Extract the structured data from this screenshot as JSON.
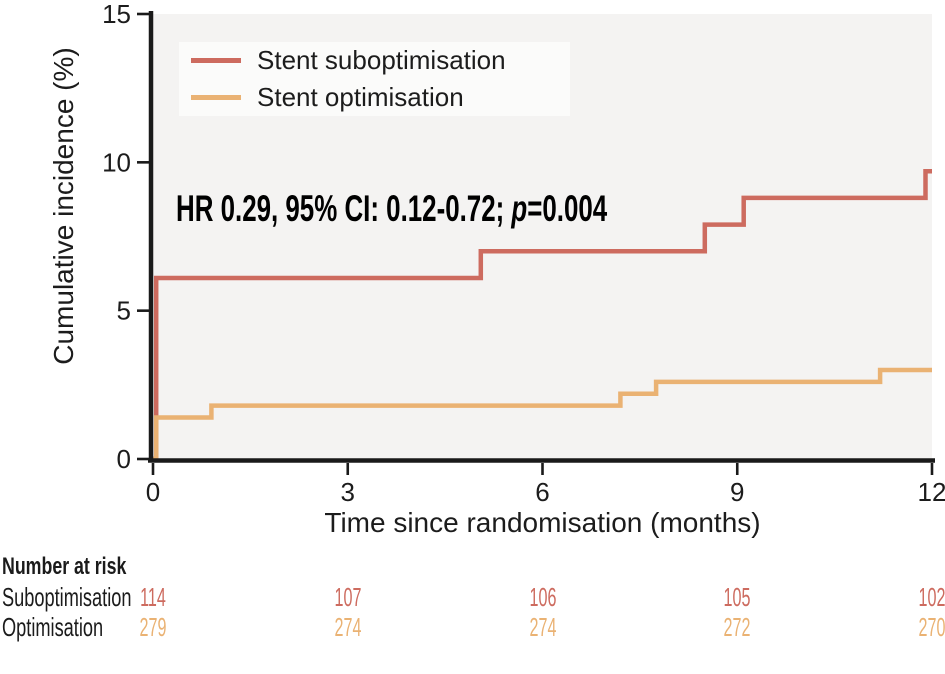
{
  "colors": {
    "suboptimisation": "#cd6b5f",
    "optimisation": "#eab273",
    "plot_bg": "#f4f3f2",
    "legend_bg": "#fbfbfa",
    "axis": "#1a1a1a",
    "text": "#1c1c1c"
  },
  "annotation": {
    "prefix": "HR 0.29, 95% CI: 0.12-0.72; ",
    "p": "p",
    "suffix": "=0.004"
  },
  "chart_data": {
    "type": "line",
    "subtype": "step",
    "title": "",
    "xlabel": "Time since randomisation (months)",
    "ylabel": "Cumulative incidence (%)",
    "xlim": [
      0,
      12
    ],
    "ylim": [
      0,
      15
    ],
    "xticks": [
      0,
      3,
      6,
      9,
      12
    ],
    "yticks": [
      0,
      5,
      10,
      15
    ],
    "grid": false,
    "legend_position": "top-left",
    "annotation_text": "HR 0.29, 95% CI: 0.12-0.72; p=0.004",
    "series": [
      {
        "name": "Stent suboptimisation",
        "color": "#cd6b5f",
        "steps": [
          [
            0,
            0
          ],
          [
            0.05,
            6.1
          ],
          [
            5.05,
            7.0
          ],
          [
            8.5,
            7.9
          ],
          [
            9.1,
            8.8
          ],
          [
            11.9,
            9.7
          ]
        ],
        "end_x": 12
      },
      {
        "name": "Stent optimisation",
        "color": "#eab273",
        "steps": [
          [
            0,
            0
          ],
          [
            0.05,
            1.4
          ],
          [
            0.9,
            1.8
          ],
          [
            7.2,
            2.2
          ],
          [
            7.75,
            2.6
          ],
          [
            11.2,
            3.0
          ]
        ],
        "end_x": 12
      }
    ],
    "number_at_risk": {
      "title": "Number at risk",
      "times": [
        0,
        3,
        6,
        9,
        12
      ],
      "rows": [
        {
          "label": "Suboptimisation",
          "color": "#cd6b5f",
          "values": [
            "114",
            "107",
            "106",
            "105",
            "102"
          ]
        },
        {
          "label": "Optimisation",
          "color": "#eab273",
          "values": [
            "279",
            "274",
            "274",
            "272",
            "270"
          ]
        }
      ]
    }
  }
}
